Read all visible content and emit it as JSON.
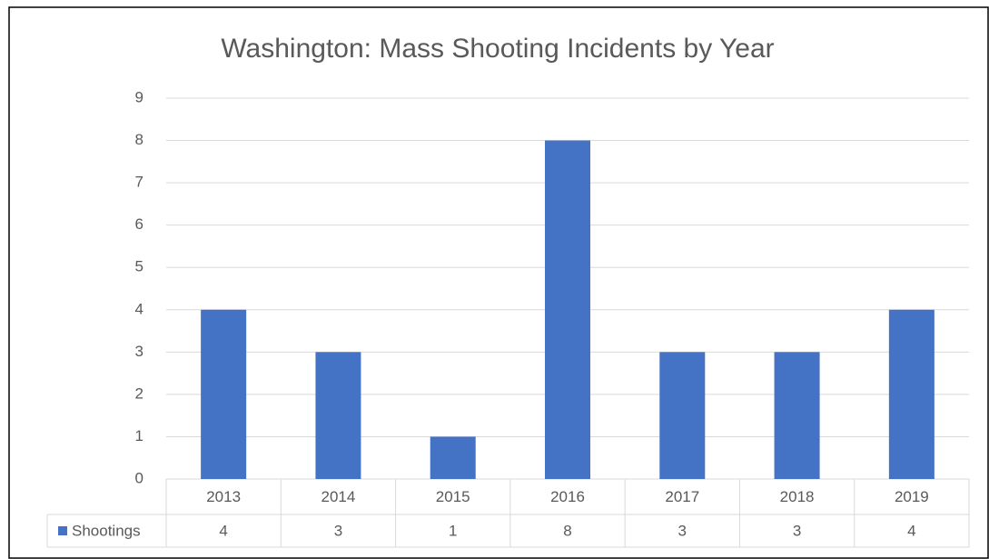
{
  "chart_data": {
    "type": "bar",
    "title": "Washington: Mass Shooting Incidents by Year",
    "categories": [
      "2013",
      "2014",
      "2015",
      "2016",
      "2017",
      "2018",
      "2019"
    ],
    "series": [
      {
        "name": "Shootings",
        "color": "#4472c4",
        "values": [
          4,
          3,
          1,
          8,
          3,
          3,
          4
        ]
      }
    ],
    "ylim": [
      0,
      9
    ],
    "yticks": [
      0,
      1,
      2,
      3,
      4,
      5,
      6,
      7,
      8,
      9
    ],
    "grid": true,
    "data_table": true
  }
}
